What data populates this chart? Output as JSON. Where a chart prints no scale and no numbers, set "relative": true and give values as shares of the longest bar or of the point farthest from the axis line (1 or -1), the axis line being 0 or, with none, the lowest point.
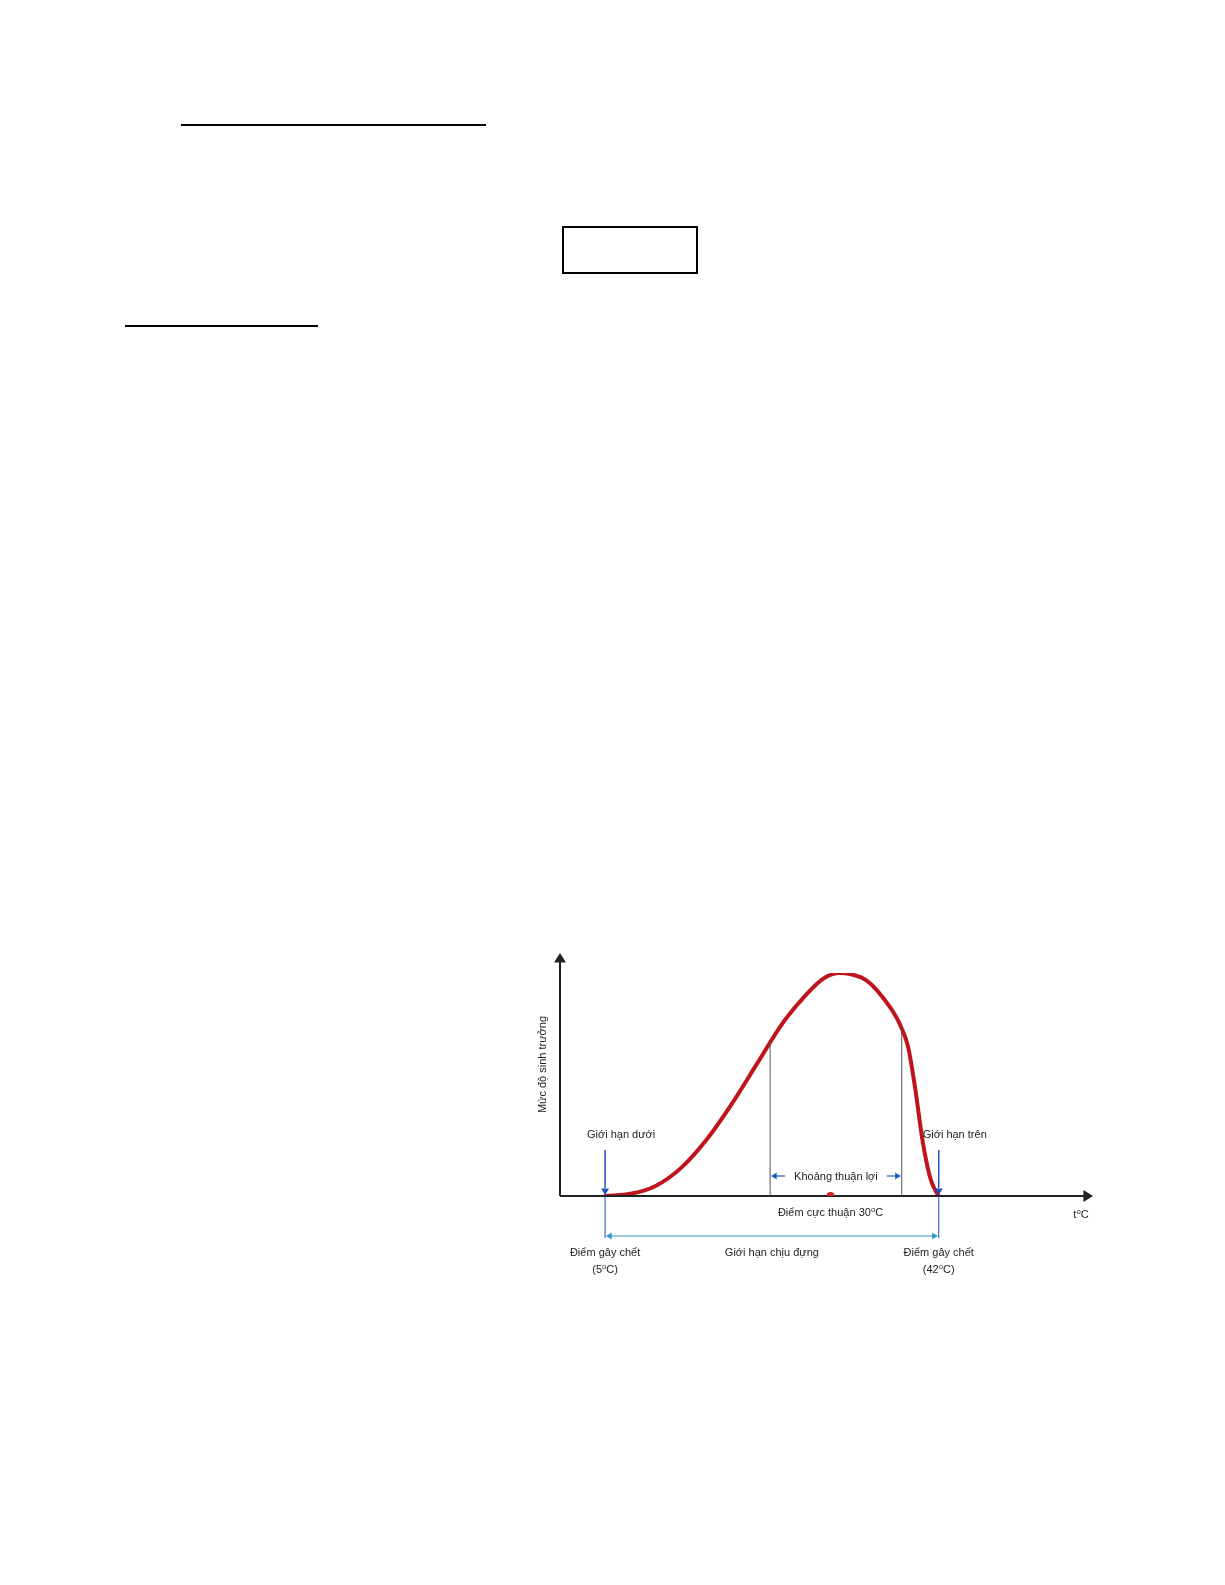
{
  "chart_data": {
    "type": "line",
    "relative": true,
    "ylabel": "Mức độ sinh trưởng",
    "xlabel": "t$^{o}$C",
    "xlim": [
      0,
      58
    ],
    "xticks": [
      {
        "value": 5,
        "label": "Điểm gây chết\n(5$^{o}$C)"
      },
      {
        "value": 42,
        "label": "Điểm gây chết\n(42$^{o}$C)"
      }
    ],
    "tick_labels": "x",
    "series": [
      {
        "color": "#c0141c",
        "x": [
          5,
          7.8,
          10.6,
          13.4,
          16.2,
          19,
          21.8,
          24.6,
          27,
          29.4,
          31,
          33.4,
          35.8,
          37.8,
          38.6,
          39.4,
          40.2,
          41,
          42
        ],
        "values": [
          0,
          0.01,
          0.045,
          0.125,
          0.25,
          0.41,
          0.59,
          0.77,
          0.89,
          0.98,
          1,
          0.98,
          0.89,
          0.76,
          0.67,
          0.48,
          0.25,
          0.09,
          0
        ]
      },
      {
        "type": "scatter",
        "name": "Điểm cực thuận 30$^{o}$C",
        "color": "#cc2222",
        "x": [
          30
        ],
        "values": [
          0
        ]
      }
    ],
    "ref_lines": [
      {
        "axis": "x",
        "value": 23.3,
        "color": "#555555"
      },
      {
        "axis": "x",
        "value": 37.9,
        "color": "#555555"
      },
      {
        "axis": "x",
        "value": 5,
        "color": "#1f4fbf",
        "label": "Giới hạn dưới"
      },
      {
        "axis": "x",
        "value": 42,
        "color": "#1f4fbf",
        "label": "Giới hạn trên"
      }
    ],
    "annotations": [
      "Khoảng thuận lợi",
      "Giới hạn chịu đựng"
    ]
  }
}
